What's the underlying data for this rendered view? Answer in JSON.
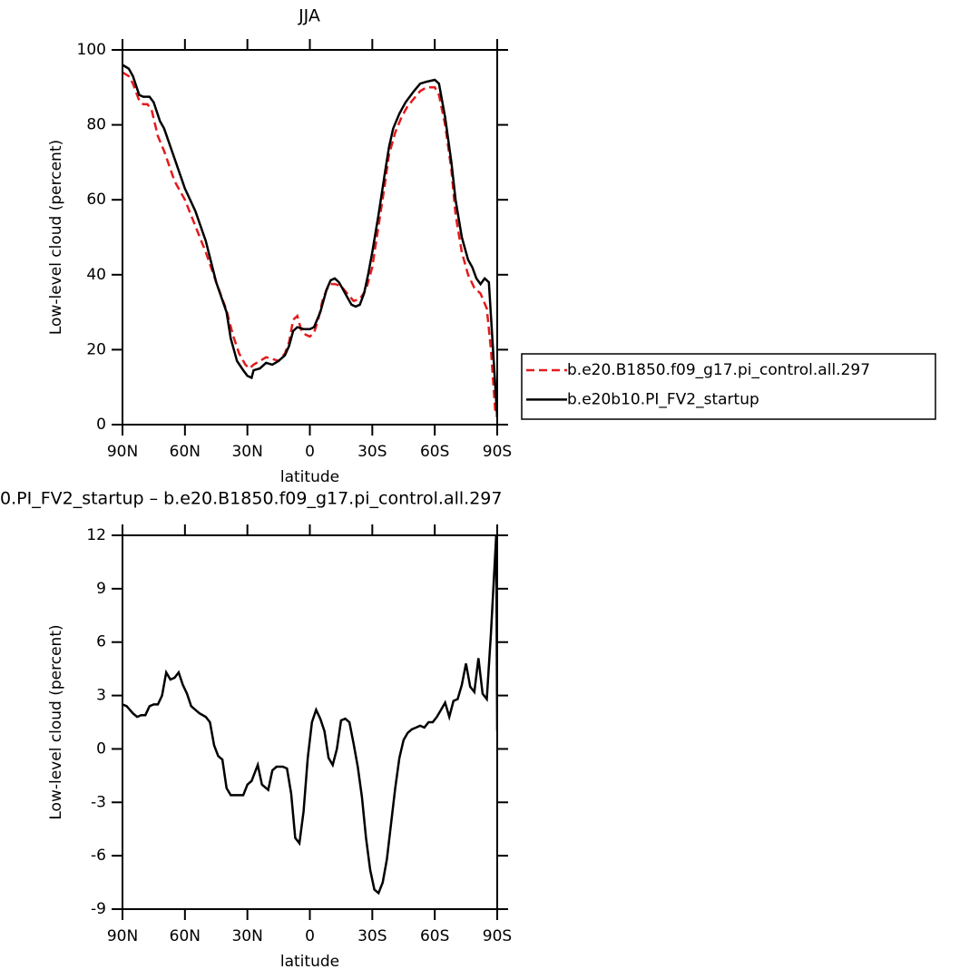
{
  "chart_data": [
    {
      "type": "line",
      "title": "JJA",
      "xlabel": "latitude",
      "ylabel": "Low-level cloud (percent)",
      "xlim": [
        90,
        -90
      ],
      "xticks": [
        {
          "value": 90,
          "label": "90N"
        },
        {
          "value": 60,
          "label": "60N"
        },
        {
          "value": 30,
          "label": "30N"
        },
        0,
        {
          "value": -30,
          "label": "30S"
        },
        {
          "value": -60,
          "label": "60S"
        },
        {
          "value": -90,
          "label": "90S"
        }
      ],
      "ylim": [
        0,
        100
      ],
      "yticks": [
        0,
        20,
        40,
        60,
        80,
        100
      ],
      "series": [
        {
          "name": "b.e20.B1850.f09_g17.pi_control.all.297",
          "color": "#e41a1c",
          "dash": true,
          "x": [
            90,
            87,
            85,
            82,
            80,
            78,
            76,
            73,
            70,
            65,
            60,
            55,
            50,
            45,
            40,
            37,
            34,
            31,
            29,
            27,
            24,
            21,
            18,
            15,
            12,
            10,
            8,
            6,
            4,
            2,
            0,
            -2,
            -4,
            -6,
            -8,
            -10,
            -12,
            -15,
            -18,
            -21,
            -24,
            -27,
            -30,
            -33,
            -36,
            -38,
            -41,
            -44,
            -47,
            -50,
            -53,
            -56,
            -60,
            -62,
            -65,
            -68,
            -70,
            -73,
            -76,
            -79,
            -82,
            -85,
            -87,
            -89,
            -90
          ],
          "values": [
            94,
            93,
            91,
            86.5,
            85.5,
            85.5,
            84,
            77,
            73,
            65,
            60,
            53,
            46,
            38,
            30.5,
            24,
            19,
            16,
            15,
            16,
            17,
            18,
            17.5,
            17,
            19,
            22,
            28,
            29,
            25,
            24,
            23.5,
            24.5,
            28,
            33,
            36,
            37.5,
            37.5,
            37,
            35,
            33,
            33.5,
            36,
            42,
            53,
            64,
            72,
            78,
            82,
            85,
            87,
            89,
            90,
            90,
            88,
            80,
            68,
            56,
            46,
            40,
            36.5,
            35,
            31,
            20,
            4,
            2
          ]
        },
        {
          "name": "b.e20b10.PI_FV2_startup",
          "color": "#000000",
          "dash": false,
          "x": [
            90,
            87,
            85,
            82,
            80,
            77,
            75,
            72,
            70,
            65,
            60,
            55,
            50,
            45,
            40,
            38,
            35,
            32,
            30,
            28,
            27,
            24,
            21,
            18,
            15,
            12,
            10,
            8,
            6,
            3,
            0,
            -2,
            -5,
            -8,
            -10,
            -12,
            -14,
            -16,
            -18,
            -20,
            -22,
            -24,
            -26,
            -28,
            -30,
            -33,
            -36,
            -38,
            -40,
            -43,
            -46,
            -50,
            -53,
            -56,
            -60,
            -62,
            -65,
            -68,
            -70,
            -73,
            -76,
            -78,
            -80,
            -82,
            -84,
            -86,
            -88,
            -90
          ],
          "values": [
            96,
            95,
            93,
            88,
            87.5,
            87.5,
            86,
            81,
            79,
            71,
            63,
            57,
            49,
            38,
            30,
            23,
            17,
            14.5,
            13,
            12.5,
            14.5,
            15,
            16.5,
            16,
            17,
            18.5,
            21,
            25,
            26,
            25.5,
            25.5,
            26,
            30,
            36,
            38.5,
            39,
            38,
            36,
            34,
            32,
            31.5,
            32,
            35,
            40,
            46,
            56,
            67,
            74,
            79,
            83,
            86,
            89,
            91,
            91.5,
            92,
            91,
            82,
            70,
            60,
            50,
            44,
            42,
            39,
            37.5,
            39,
            38,
            20,
            2
          ]
        }
      ],
      "legend": "right"
    },
    {
      "type": "line",
      "title": "0.PI_FV2_startup – b.e20.B1850.f09_g17.pi_control.all.297",
      "xlabel": "latitude",
      "ylabel": "Low-level cloud (percent)",
      "xlim": [
        90,
        -90
      ],
      "xticks": [
        {
          "value": 90,
          "label": "90N"
        },
        {
          "value": 60,
          "label": "60N"
        },
        {
          "value": 30,
          "label": "30N"
        },
        0,
        {
          "value": -30,
          "label": "30S"
        },
        {
          "value": -60,
          "label": "60S"
        },
        {
          "value": -90,
          "label": "90S"
        }
      ],
      "ylim": [
        -9,
        12
      ],
      "yticks": [
        -9,
        -6,
        -3,
        0,
        3,
        6,
        9,
        12
      ],
      "series": [
        {
          "color": "#000000",
          "dash": false,
          "x": [
            90,
            88,
            85,
            83,
            81,
            79,
            77,
            75,
            73,
            71,
            69,
            67,
            65,
            63,
            61,
            59,
            57,
            55,
            53,
            50,
            48,
            46,
            44,
            42,
            40,
            38,
            35,
            32,
            30,
            28,
            25,
            23,
            20,
            18,
            16,
            13,
            11,
            9,
            7,
            5,
            3,
            1,
            -1,
            -3,
            -5,
            -7,
            -9,
            -11,
            -13,
            -15,
            -17,
            -19,
            -21,
            -23,
            -25,
            -27,
            -29,
            -31,
            -33,
            -35,
            -37,
            -39,
            -41,
            -43,
            -45,
            -47,
            -49,
            -51,
            -53,
            -55,
            -57,
            -59,
            -61,
            -63,
            -65,
            -67,
            -69,
            -71,
            -73,
            -75,
            -77,
            -79,
            -81,
            -83,
            -85,
            -87,
            -89.5,
            -90
          ],
          "values": [
            2.5,
            2.4,
            2,
            1.8,
            1.9,
            1.9,
            2.4,
            2.5,
            2.5,
            3,
            4.3,
            3.9,
            4,
            4.3,
            3.6,
            3.1,
            2.4,
            2.2,
            2,
            1.8,
            1.5,
            0.2,
            -0.4,
            -0.6,
            -2.2,
            -2.6,
            -2.6,
            -2.6,
            -2,
            -1.8,
            -0.9,
            -2,
            -2.3,
            -1.2,
            -1,
            -1,
            -1.1,
            -2.5,
            -5,
            -5.3,
            -3.5,
            -0.5,
            1.5,
            2.2,
            1.7,
            1,
            -0.5,
            -0.9,
            0,
            1.6,
            1.7,
            1.5,
            0.3,
            -1,
            -2.7,
            -5,
            -6.8,
            -7.9,
            -8.1,
            -7.5,
            -6.2,
            -4.2,
            -2.2,
            -0.5,
            0.5,
            0.9,
            1.1,
            1.2,
            1.3,
            1.2,
            1.5,
            1.5,
            1.8,
            2.2,
            2.6,
            1.8,
            2.7,
            2.8,
            3.6,
            4.8,
            3.5,
            3.2,
            5.1,
            3.1,
            2.8,
            6.5,
            12,
            1
          ]
        }
      ]
    }
  ]
}
